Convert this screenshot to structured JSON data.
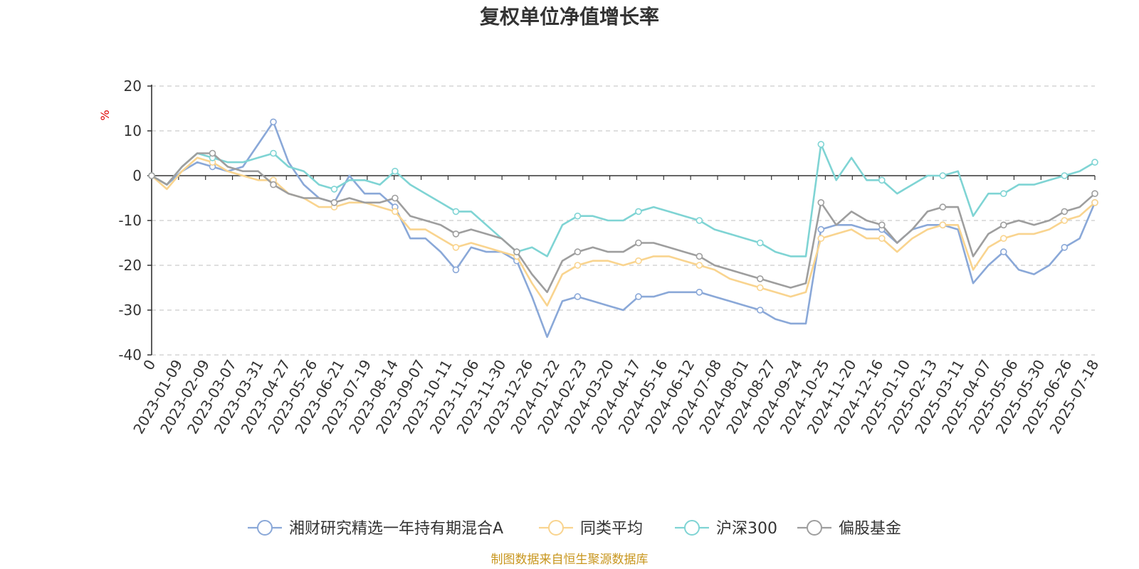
{
  "chart_data": {
    "type": "line",
    "title": "复权单位净值增长率",
    "ylabel": "%",
    "ylim": [
      -40,
      20
    ],
    "yticks": [
      20,
      10,
      0,
      -10,
      -20,
      -30,
      -40
    ],
    "grid": true,
    "legend_position": "bottom",
    "source": "制图数据来自恒生聚源数据库",
    "x_tick_labels": [
      "0",
      "2023-01-09",
      "2023-02-09",
      "2023-03-07",
      "2023-03-31",
      "2023-04-27",
      "2023-05-26",
      "2023-06-21",
      "2023-07-19",
      "2023-08-14",
      "2023-09-07",
      "2023-10-11",
      "2023-11-06",
      "2023-11-30",
      "2023-12-26",
      "2024-01-22",
      "2024-02-23",
      "2024-03-20",
      "2024-04-17",
      "2024-05-16",
      "2024-06-12",
      "2024-07-08",
      "2024-08-01",
      "2024-08-27",
      "2024-09-24",
      "2024-10-25",
      "2024-11-20",
      "2024-12-16",
      "2025-01-10",
      "2025-02-13",
      "2025-03-11",
      "2025-04-07",
      "2025-05-06",
      "2025-05-30",
      "2025-06-26",
      "2025-07-18"
    ],
    "series": [
      {
        "name": "湘财研究精选一年持有期混合A",
        "color": "#8aa8d8",
        "values": [
          0,
          -2,
          1,
          3,
          2,
          1,
          2,
          7,
          12,
          3,
          -2,
          -5,
          -6,
          0,
          -4,
          -4,
          -7,
          -14,
          -14,
          -17,
          -21,
          -16,
          -17,
          -17,
          -19,
          -27,
          -36,
          -28,
          -27,
          -28,
          -29,
          -30,
          -27,
          -27,
          -26,
          -26,
          -26,
          -27,
          -28,
          -29,
          -30,
          -32,
          -33,
          -33,
          -12,
          -11,
          -11,
          -12,
          -12,
          -15,
          -12,
          -11,
          -11,
          -12,
          -24,
          -20,
          -17,
          -21,
          -22,
          -20,
          -16,
          -14,
          -6
        ]
      },
      {
        "name": "同类平均",
        "color": "#f9d48f",
        "values": [
          0,
          -3,
          1,
          4,
          3,
          1,
          0,
          -1,
          -1,
          -4,
          -5,
          -7,
          -7,
          -6,
          -6,
          -7,
          -8,
          -12,
          -12,
          -14,
          -16,
          -15,
          -16,
          -17,
          -18,
          -24,
          -29,
          -22,
          -20,
          -19,
          -19,
          -20,
          -19,
          -18,
          -18,
          -19,
          -20,
          -21,
          -23,
          -24,
          -25,
          -26,
          -27,
          -26,
          -14,
          -13,
          -12,
          -14,
          -14,
          -17,
          -14,
          -12,
          -11,
          -11,
          -21,
          -16,
          -14,
          -13,
          -13,
          -12,
          -10,
          -9,
          -6
        ]
      },
      {
        "name": "沪深300",
        "color": "#7fd4d4",
        "values": [
          0,
          -2,
          2,
          5,
          4,
          3,
          3,
          4,
          5,
          2,
          1,
          -2,
          -3,
          -1,
          -1,
          -2,
          1,
          -2,
          -4,
          -6,
          -8,
          -8,
          -11,
          -14,
          -17,
          -16,
          -18,
          -11,
          -9,
          -9,
          -10,
          -10,
          -8,
          -7,
          -8,
          -9,
          -10,
          -12,
          -13,
          -14,
          -15,
          -17,
          -18,
          -18,
          7,
          -1,
          4,
          -1,
          -1,
          -4,
          -2,
          0,
          0,
          1,
          -9,
          -4,
          -4,
          -2,
          -2,
          -1,
          0,
          1,
          3
        ]
      },
      {
        "name": "偏股基金",
        "color": "#9e9e9e",
        "values": [
          0,
          -2,
          2,
          5,
          5,
          2,
          1,
          1,
          -2,
          -4,
          -5,
          -5,
          -6,
          -5,
          -6,
          -6,
          -5,
          -9,
          -10,
          -11,
          -13,
          -12,
          -13,
          -14,
          -17,
          -22,
          -26,
          -19,
          -17,
          -16,
          -17,
          -17,
          -15,
          -15,
          -16,
          -17,
          -18,
          -20,
          -21,
          -22,
          -23,
          -24,
          -25,
          -24,
          -6,
          -11,
          -8,
          -10,
          -11,
          -15,
          -12,
          -8,
          -7,
          -7,
          -18,
          -13,
          -11,
          -10,
          -11,
          -10,
          -8,
          -7,
          -4
        ]
      }
    ]
  }
}
